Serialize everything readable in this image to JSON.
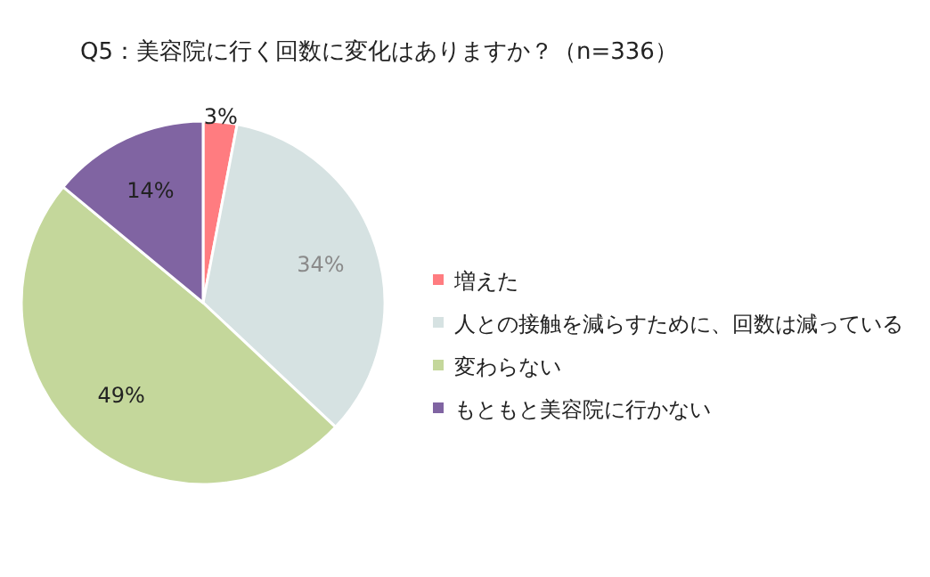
{
  "chart_data": {
    "type": "pie",
    "title": "Q5：美容院に行く回数に変化はありますか？（n=336）",
    "categories": [
      "増えた",
      "人との接触を減らすために、回数は減っている",
      "変わらない",
      "もともと美容院に行かない"
    ],
    "values": [
      3,
      34,
      49,
      14
    ],
    "colors": [
      "#ff7c80",
      "#d6e2e2",
      "#c4d79b",
      "#8064a2"
    ],
    "value_labels": [
      "3%",
      "34%",
      "49%",
      "14%"
    ],
    "legend": "right"
  }
}
